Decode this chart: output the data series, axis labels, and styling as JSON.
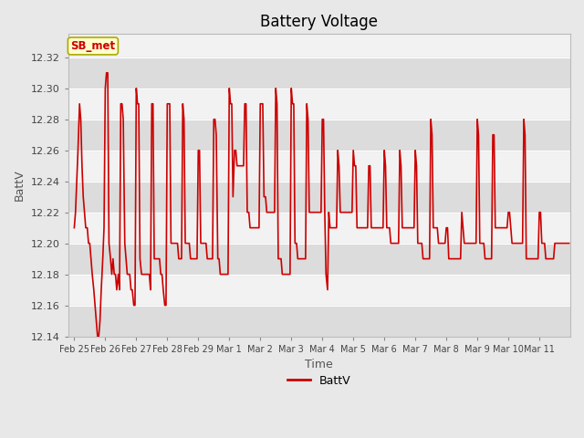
{
  "title": "Battery Voltage",
  "xlabel": "Time",
  "ylabel": "BattV",
  "legend_label": "BattV",
  "line_color": "#cc0000",
  "line_width": 1.2,
  "ylim": [
    12.14,
    12.335
  ],
  "yticks": [
    12.14,
    12.16,
    12.18,
    12.2,
    12.22,
    12.24,
    12.26,
    12.28,
    12.3,
    12.32
  ],
  "bg_color": "#e8e8e8",
  "plot_bg_color": "#f2f2f2",
  "stripe_color_light": "#dcdcdc",
  "annotation_box_color": "#ffffcc",
  "annotation_text_color": "#cc0000",
  "annotation_border_color": "#aaaa00",
  "annotation_text": "SB_met",
  "title_fontsize": 12,
  "axis_label_fontsize": 9,
  "tick_fontsize": 8,
  "x_tick_labels": [
    "Feb 25",
    "Feb 26",
    "Feb 27",
    "Feb 28",
    "Feb 29",
    "Mar 1",
    "Mar 2",
    "Mar 3",
    "Mar 4",
    "Mar 5",
    "Mar 6",
    "Mar 7",
    "Mar 8",
    "Mar 9",
    "Mar 10",
    "Mar 11"
  ],
  "data_x": [
    0.0,
    0.04,
    0.08,
    0.12,
    0.17,
    0.21,
    0.25,
    0.29,
    0.33,
    0.37,
    0.42,
    0.46,
    0.5,
    0.54,
    0.58,
    0.63,
    0.67,
    0.71,
    0.75,
    0.79,
    0.83,
    0.87,
    0.92,
    0.96,
    1.0,
    1.04,
    1.08,
    1.12,
    1.17,
    1.21,
    1.25,
    1.29,
    1.33,
    1.37,
    1.42,
    1.46,
    1.5,
    1.54,
    1.58,
    1.63,
    1.67,
    1.71,
    1.75,
    1.79,
    1.83,
    1.87,
    1.92,
    1.96,
    2.0,
    2.04,
    2.08,
    2.12,
    2.17,
    2.21,
    2.25,
    2.29,
    2.33,
    2.37,
    2.42,
    2.46,
    2.5,
    2.54,
    2.58,
    2.63,
    2.67,
    2.71,
    2.75,
    2.79,
    2.83,
    2.87,
    2.92,
    2.96,
    3.0,
    3.04,
    3.08,
    3.12,
    3.17,
    3.21,
    3.25,
    3.29,
    3.33,
    3.37,
    3.42,
    3.46,
    3.5,
    3.54,
    3.58,
    3.63,
    3.67,
    3.71,
    3.75,
    3.79,
    3.83,
    3.87,
    3.92,
    3.96,
    4.0,
    4.04,
    4.08,
    4.12,
    4.17,
    4.21,
    4.25,
    4.29,
    4.33,
    4.37,
    4.42,
    4.46,
    4.5,
    4.54,
    4.58,
    4.63,
    4.67,
    4.71,
    4.75,
    4.79,
    4.83,
    4.87,
    4.92,
    4.96,
    5.0,
    5.04,
    5.08,
    5.12,
    5.17,
    5.21,
    5.25,
    5.29,
    5.33,
    5.37,
    5.42,
    5.46,
    5.5,
    5.54,
    5.58,
    5.63,
    5.67,
    5.71,
    5.75,
    5.79,
    5.83,
    5.87,
    5.92,
    5.96,
    6.0,
    6.04,
    6.08,
    6.12,
    6.17,
    6.21,
    6.25,
    6.29,
    6.33,
    6.37,
    6.42,
    6.46,
    6.5,
    6.54,
    6.58,
    6.63,
    6.67,
    6.71,
    6.75,
    6.79,
    6.83,
    6.87,
    6.92,
    6.96,
    7.0,
    7.04,
    7.08,
    7.12,
    7.17,
    7.21,
    7.25,
    7.29,
    7.33,
    7.37,
    7.42,
    7.46,
    7.5,
    7.54,
    7.58,
    7.63,
    7.67,
    7.71,
    7.75,
    7.79,
    7.83,
    7.87,
    7.92,
    7.96,
    8.0,
    8.04,
    8.08,
    8.12,
    8.17,
    8.21,
    8.25,
    8.29,
    8.33,
    8.37,
    8.42,
    8.46,
    8.5,
    8.54,
    8.58,
    8.63,
    8.67,
    8.71,
    8.75,
    8.79,
    8.83,
    8.87,
    8.92,
    8.96,
    9.0,
    9.04,
    9.08,
    9.12,
    9.17,
    9.21,
    9.25,
    9.29,
    9.33,
    9.37,
    9.42,
    9.46,
    9.5,
    9.54,
    9.58,
    9.63,
    9.67,
    9.71,
    9.75,
    9.79,
    9.83,
    9.87,
    9.92,
    9.96,
    10.0,
    10.04,
    10.08,
    10.12,
    10.17,
    10.21,
    10.25,
    10.29,
    10.33,
    10.37,
    10.42,
    10.46,
    10.5,
    10.54,
    10.58,
    10.63,
    10.67,
    10.71,
    10.75,
    10.79,
    10.83,
    10.87,
    10.92,
    10.96,
    11.0,
    11.04,
    11.08,
    11.12,
    11.17,
    11.21,
    11.25,
    11.29,
    11.33,
    11.37,
    11.42,
    11.46,
    11.5,
    11.54,
    11.58,
    11.63,
    11.67,
    11.71,
    11.75,
    11.79,
    11.83,
    11.87,
    11.92,
    11.96,
    12.0,
    12.04,
    12.08,
    12.12,
    12.17,
    12.21,
    12.25,
    12.29,
    12.33,
    12.37,
    12.42,
    12.46,
    12.5,
    12.54,
    12.58,
    12.63,
    12.67,
    12.71,
    12.75,
    12.79,
    12.83,
    12.87,
    12.92,
    12.96,
    13.0,
    13.04,
    13.08,
    13.12,
    13.17,
    13.21,
    13.25,
    13.29,
    13.33,
    13.37,
    13.42,
    13.46,
    13.5,
    13.54,
    13.58,
    13.63,
    13.67,
    13.71,
    13.75,
    13.79,
    13.83,
    13.87,
    13.92,
    13.96,
    14.0,
    14.04,
    14.08,
    14.12,
    14.17,
    14.21,
    14.25,
    14.29,
    14.33,
    14.37,
    14.42,
    14.46,
    14.5,
    14.54,
    14.58,
    14.63,
    14.67,
    14.71,
    14.75,
    14.79,
    14.83,
    14.87,
    14.92,
    14.96,
    15.0,
    15.04,
    15.08,
    15.12,
    15.17,
    15.21,
    15.25,
    15.29,
    15.33,
    15.37,
    15.42,
    15.46,
    15.5,
    15.54,
    15.58,
    15.63,
    15.67,
    15.71,
    15.75,
    15.79,
    15.83,
    15.87,
    15.92,
    15.96
  ],
  "data_y": [
    12.21,
    12.22,
    12.24,
    12.26,
    12.29,
    12.28,
    12.25,
    12.23,
    12.22,
    12.21,
    12.21,
    12.2,
    12.2,
    12.19,
    12.18,
    12.17,
    12.16,
    12.15,
    12.14,
    12.14,
    12.15,
    12.17,
    12.19,
    12.21,
    12.3,
    12.31,
    12.31,
    12.2,
    12.19,
    12.18,
    12.19,
    12.18,
    12.18,
    12.17,
    12.18,
    12.17,
    12.29,
    12.29,
    12.28,
    12.2,
    12.19,
    12.18,
    12.18,
    12.18,
    12.17,
    12.17,
    12.16,
    12.16,
    12.3,
    12.29,
    12.29,
    12.19,
    12.18,
    12.18,
    12.18,
    12.18,
    12.18,
    12.18,
    12.18,
    12.17,
    12.29,
    12.29,
    12.19,
    12.19,
    12.19,
    12.19,
    12.19,
    12.18,
    12.18,
    12.17,
    12.16,
    12.16,
    12.29,
    12.29,
    12.29,
    12.2,
    12.2,
    12.2,
    12.2,
    12.2,
    12.2,
    12.19,
    12.19,
    12.19,
    12.29,
    12.28,
    12.2,
    12.2,
    12.2,
    12.2,
    12.19,
    12.19,
    12.19,
    12.19,
    12.19,
    12.19,
    12.26,
    12.26,
    12.2,
    12.2,
    12.2,
    12.2,
    12.2,
    12.19,
    12.19,
    12.19,
    12.19,
    12.19,
    12.28,
    12.28,
    12.27,
    12.19,
    12.19,
    12.18,
    12.18,
    12.18,
    12.18,
    12.18,
    12.18,
    12.18,
    12.3,
    12.29,
    12.29,
    12.23,
    12.26,
    12.26,
    12.25,
    12.25,
    12.25,
    12.25,
    12.25,
    12.25,
    12.29,
    12.29,
    12.22,
    12.22,
    12.21,
    12.21,
    12.21,
    12.21,
    12.21,
    12.21,
    12.21,
    12.21,
    12.29,
    12.29,
    12.29,
    12.23,
    12.23,
    12.22,
    12.22,
    12.22,
    12.22,
    12.22,
    12.22,
    12.22,
    12.3,
    12.29,
    12.19,
    12.19,
    12.19,
    12.18,
    12.18,
    12.18,
    12.18,
    12.18,
    12.18,
    12.18,
    12.3,
    12.29,
    12.29,
    12.2,
    12.2,
    12.19,
    12.19,
    12.19,
    12.19,
    12.19,
    12.19,
    12.19,
    12.29,
    12.28,
    12.22,
    12.22,
    12.22,
    12.22,
    12.22,
    12.22,
    12.22,
    12.22,
    12.22,
    12.22,
    12.28,
    12.28,
    12.22,
    12.18,
    12.17,
    12.22,
    12.21,
    12.21,
    12.21,
    12.21,
    12.21,
    12.21,
    12.26,
    12.25,
    12.22,
    12.22,
    12.22,
    12.22,
    12.22,
    12.22,
    12.22,
    12.22,
    12.22,
    12.22,
    12.26,
    12.25,
    12.25,
    12.21,
    12.21,
    12.21,
    12.21,
    12.21,
    12.21,
    12.21,
    12.21,
    12.21,
    12.25,
    12.25,
    12.21,
    12.21,
    12.21,
    12.21,
    12.21,
    12.21,
    12.21,
    12.21,
    12.21,
    12.21,
    12.26,
    12.25,
    12.21,
    12.21,
    12.21,
    12.2,
    12.2,
    12.2,
    12.2,
    12.2,
    12.2,
    12.2,
    12.26,
    12.25,
    12.21,
    12.21,
    12.21,
    12.21,
    12.21,
    12.21,
    12.21,
    12.21,
    12.21,
    12.21,
    12.26,
    12.25,
    12.2,
    12.2,
    12.2,
    12.2,
    12.19,
    12.19,
    12.19,
    12.19,
    12.19,
    12.19,
    12.28,
    12.27,
    12.21,
    12.21,
    12.21,
    12.21,
    12.2,
    12.2,
    12.2,
    12.2,
    12.2,
    12.2,
    12.21,
    12.21,
    12.19,
    12.19,
    12.19,
    12.19,
    12.19,
    12.19,
    12.19,
    12.19,
    12.19,
    12.19,
    12.22,
    12.21,
    12.2,
    12.2,
    12.2,
    12.2,
    12.2,
    12.2,
    12.2,
    12.2,
    12.2,
    12.2,
    12.28,
    12.27,
    12.2,
    12.2,
    12.2,
    12.2,
    12.19,
    12.19,
    12.19,
    12.19,
    12.19,
    12.19,
    12.27,
    12.27,
    12.21,
    12.21,
    12.21,
    12.21,
    12.21,
    12.21,
    12.21,
    12.21,
    12.21,
    12.21,
    12.22,
    12.22,
    12.21,
    12.2,
    12.2,
    12.2,
    12.2,
    12.2,
    12.2,
    12.2,
    12.2,
    12.2,
    12.28,
    12.27,
    12.19,
    12.19,
    12.19,
    12.19,
    12.19,
    12.19,
    12.19,
    12.19,
    12.19,
    12.19,
    12.22,
    12.22,
    12.2,
    12.2,
    12.2,
    12.19,
    12.19,
    12.19,
    12.19,
    12.19,
    12.19,
    12.19,
    12.2,
    12.2,
    12.2,
    12.2,
    12.2,
    12.2,
    12.2,
    12.2,
    12.2,
    12.2,
    12.2,
    12.2
  ]
}
